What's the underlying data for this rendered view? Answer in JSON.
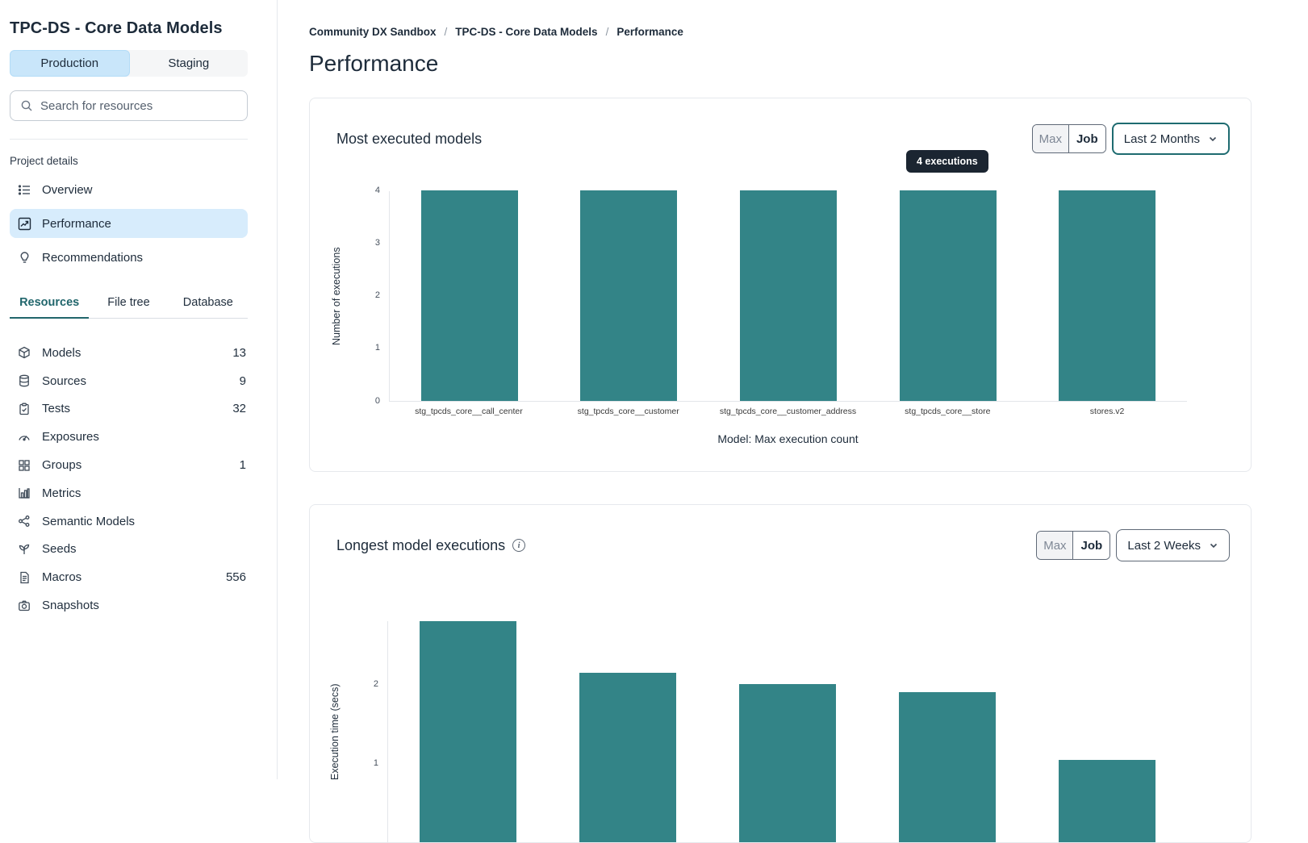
{
  "sidebar": {
    "title": "TPC-DS - Core Data Models",
    "env_toggle": {
      "production": "Production",
      "staging": "Staging"
    },
    "search": {
      "placeholder": "Search for resources"
    },
    "project_details_label": "Project details",
    "nav": [
      {
        "label": "Overview",
        "icon": "list-icon"
      },
      {
        "label": "Performance",
        "icon": "chart-line-icon"
      },
      {
        "label": "Recommendations",
        "icon": "lightbulb-icon"
      }
    ],
    "tabs": [
      {
        "label": "Resources"
      },
      {
        "label": "File tree"
      },
      {
        "label": "Database"
      }
    ],
    "resources": [
      {
        "label": "Models",
        "count": "13",
        "icon": "cube-icon"
      },
      {
        "label": "Sources",
        "count": "9",
        "icon": "database-icon"
      },
      {
        "label": "Tests",
        "count": "32",
        "icon": "clipboard-check-icon"
      },
      {
        "label": "Exposures",
        "count": "",
        "icon": "gauge-icon"
      },
      {
        "label": "Groups",
        "count": "1",
        "icon": "grid-icon"
      },
      {
        "label": "Metrics",
        "count": "",
        "icon": "bar-chart-icon"
      },
      {
        "label": "Semantic Models",
        "count": "",
        "icon": "graph-icon"
      },
      {
        "label": "Seeds",
        "count": "",
        "icon": "seedling-icon"
      },
      {
        "label": "Macros",
        "count": "556",
        "icon": "document-icon"
      },
      {
        "label": "Snapshots",
        "count": "",
        "icon": "camera-icon"
      }
    ]
  },
  "breadcrumb": {
    "items": [
      "Community DX Sandbox",
      "TPC-DS - Core Data Models",
      "Performance"
    ],
    "separator": "/"
  },
  "page_title": "Performance",
  "cards": [
    {
      "title": "Most executed models",
      "toggle": {
        "max": "Max",
        "job": "Job"
      },
      "dropdown_value": "Last 2 Months",
      "tooltip": "4 executions"
    },
    {
      "title": "Longest model executions",
      "toggle": {
        "max": "Max",
        "job": "Job"
      },
      "dropdown_value": "Last 2 Weeks"
    }
  ],
  "chart_data": [
    {
      "type": "bar",
      "title": "Most executed models",
      "categories": [
        "stg_tpcds_core__call_center",
        "stg_tpcds_core__customer",
        "stg_tpcds_core__customer_address",
        "stg_tpcds_core__store",
        "stores.v2"
      ],
      "values": [
        4,
        4,
        4,
        4,
        4
      ],
      "xlabel": "Model: Max execution count",
      "ylabel": "Number of executions",
      "ylim": [
        0,
        4
      ],
      "yticks": [
        0,
        1,
        2,
        3,
        4
      ],
      "bar_color": "#338487",
      "grid": false,
      "annotation": {
        "text": "4 executions",
        "target_index": 3
      }
    },
    {
      "type": "bar",
      "title": "Longest model executions",
      "categories": [
        "",
        "",
        "",
        "",
        ""
      ],
      "values": [
        2.8,
        2.15,
        2.0,
        1.9,
        1.05
      ],
      "ylabel": "Execution time (secs)",
      "yticks": [
        1,
        2
      ],
      "bar_color": "#338487",
      "grid": false,
      "layout_note": "chart cropped by bottom edge of viewport"
    }
  ],
  "colors": {
    "bar_teal": "#338487",
    "active_tab_teal": "#21666c",
    "active_blue_bg": "#d7ecfc",
    "production_blue_bg": "#c9e6fa",
    "tooltip_bg": "#1b2531",
    "text_dark": "#1d2b3a",
    "dropdown_focus_border": "#1e6b70"
  }
}
